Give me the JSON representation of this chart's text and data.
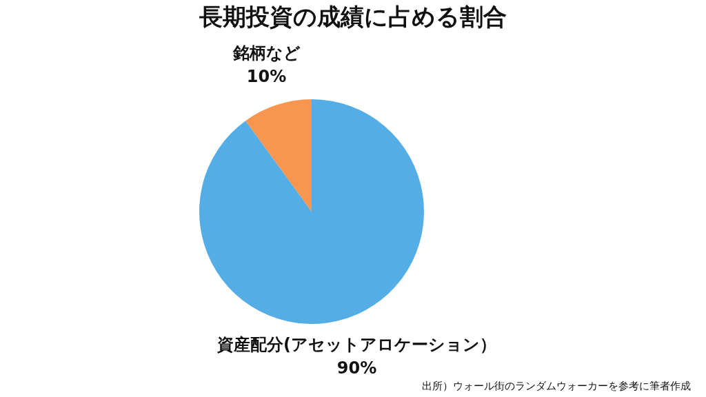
{
  "chart_data": {
    "type": "pie",
    "title": "長期投資の成績に占める割合",
    "categories": [
      "資産配分(アセットアロケーション）",
      "銘柄など"
    ],
    "values": [
      90,
      10
    ],
    "colors": [
      "#55ade6",
      "#f8954f"
    ],
    "value_labels": [
      "90%",
      "10%"
    ],
    "legend": false,
    "annotations": [
      "出所）ウォール街のランダムウォーカーを参考に筆者作成"
    ]
  }
}
